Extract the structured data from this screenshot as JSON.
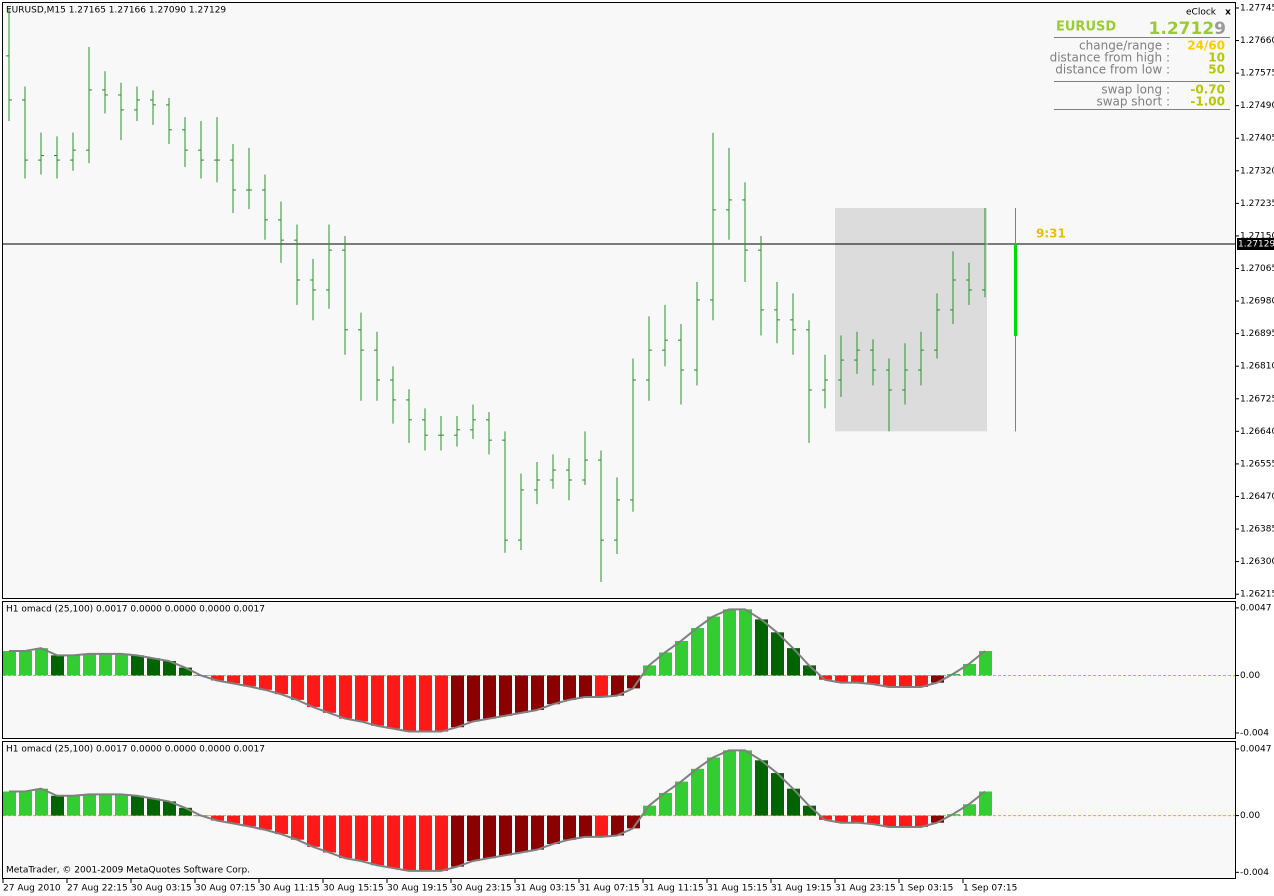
{
  "header": "EURUSD,M15  1.27165 1.27166 1.27090 1.27129",
  "copyright": "MetaTrader, © 2001-2009 MetaQuotes Software Corp.",
  "eclock": {
    "title": "eClock",
    "close": "x",
    "symbol": "EURUSD",
    "price": "1.2712",
    "price_last_digit": "9",
    "rows": [
      {
        "label": "change/range :",
        "value": "24/60",
        "color": "#ffcc00"
      },
      {
        "label": "distance from high :",
        "value": "10",
        "color": "#b5c800"
      },
      {
        "label": "distance from low :",
        "value": "50",
        "color": "#b5c800"
      },
      {
        "label": "swap long :",
        "value": "-0.70",
        "color": "#b5c800"
      },
      {
        "label": "swap short :",
        "value": "-1.00",
        "color": "#b5c800"
      }
    ]
  },
  "chart_data": [
    {
      "type": "ohlc",
      "color": "#2e8b2e",
      "open": [
        1.2762,
        1.27505,
        1.27348,
        1.2736,
        1.27348,
        1.27374,
        1.27531,
        1.27518,
        1.27479,
        1.27505,
        1.27492,
        1.27427,
        1.27374,
        1.27348,
        1.27348,
        1.2727,
        1.2727,
        1.27192,
        1.27139,
        1.27035,
        1.27009,
        1.27113,
        1.26905,
        1.26852,
        1.26774,
        1.26722,
        1.2667,
        1.2663,
        1.2663,
        1.26644,
        1.2667,
        1.26617,
        1.26356,
        1.26487,
        1.26513,
        1.26539,
        1.26513,
        1.26565,
        1.26356,
        1.26461,
        1.26774,
        1.26852,
        1.26878,
        1.268,
        1.26983,
        1.27218,
        1.27244,
        1.27113,
        1.26957,
        1.26931,
        1.26905,
        1.26748,
        1.26774,
        1.26826,
        1.26852,
        1.268,
        1.26748,
        1.268,
        1.26852,
        1.26957,
        1.27035,
        1.27009
      ],
      "high": [
        1.27745,
        1.2754,
        1.2742,
        1.2741,
        1.2742,
        1.27643,
        1.2758,
        1.2755,
        1.2754,
        1.2753,
        1.2751,
        1.2746,
        1.2745,
        1.2746,
        1.2739,
        1.2738,
        1.2731,
        1.2724,
        1.2718,
        1.2709,
        1.2718,
        1.2715,
        1.2695,
        1.269,
        1.2681,
        1.2675,
        1.267,
        1.2668,
        1.2668,
        1.2671,
        1.2669,
        1.2664,
        1.2653,
        1.2656,
        1.2658,
        1.2657,
        1.2664,
        1.2659,
        1.2652,
        1.2683,
        1.2694,
        1.2697,
        1.2692,
        1.2703,
        1.27419,
        1.2738,
        1.2729,
        1.2715,
        1.2703,
        1.27,
        1.2693,
        1.2684,
        1.2689,
        1.269,
        1.2688,
        1.2683,
        1.2687,
        1.269,
        1.27,
        1.2711,
        1.2708,
        1.27223
      ],
      "low": [
        1.2745,
        1.273,
        1.2731,
        1.273,
        1.2732,
        1.2734,
        1.2747,
        1.274,
        1.2745,
        1.2744,
        1.2739,
        1.2733,
        1.273,
        1.2729,
        1.2721,
        1.2722,
        1.2714,
        1.2708,
        1.2697,
        1.2693,
        1.2696,
        1.2684,
        1.2672,
        1.2672,
        1.2666,
        1.2661,
        1.2659,
        1.2659,
        1.266,
        1.2662,
        1.2658,
        1.26323,
        1.2633,
        1.2645,
        1.2649,
        1.2646,
        1.265,
        1.26247,
        1.2632,
        1.2643,
        1.2672,
        1.2681,
        1.2671,
        1.2676,
        1.2693,
        1.2714,
        1.2703,
        1.2689,
        1.2687,
        1.2684,
        1.2661,
        1.267,
        1.2673,
        1.2679,
        1.2676,
        1.2664,
        1.2671,
        1.2676,
        1.2683,
        1.2692,
        1.2697,
        1.2699
      ],
      "close": [
        1.27505,
        1.27348,
        1.2736,
        1.27348,
        1.27374,
        1.27531,
        1.27518,
        1.27479,
        1.27505,
        1.27492,
        1.27427,
        1.27374,
        1.27348,
        1.27348,
        1.2727,
        1.2727,
        1.27192,
        1.27139,
        1.27035,
        1.27009,
        1.27113,
        1.26905,
        1.26852,
        1.26774,
        1.26722,
        1.2667,
        1.2663,
        1.2663,
        1.26644,
        1.2667,
        1.26617,
        1.26356,
        1.26487,
        1.26513,
        1.26539,
        1.26513,
        1.26565,
        1.26356,
        1.26461,
        1.26774,
        1.26852,
        1.26878,
        1.268,
        1.26983,
        1.27218,
        1.27244,
        1.27113,
        1.26957,
        1.26931,
        1.26905,
        1.26748,
        1.26774,
        1.26826,
        1.26852,
        1.268,
        1.26748,
        1.268,
        1.26852,
        1.26957,
        1.27035,
        1.27009,
        1.27129
      ],
      "ylim": [
        1.26205,
        1.27758
      ],
      "yticks": [
        1.27745,
        {
          "value": 1.2766,
          "label": "1.27660"
        },
        1.27575,
        {
          "value": 1.2749,
          "label": "1.27490"
        },
        1.27405,
        {
          "value": 1.2732,
          "label": "1.27320"
        },
        1.27235,
        {
          "value": 1.2715,
          "label": "1.27150"
        },
        1.27065,
        {
          "value": 1.2698,
          "label": "1.26980"
        },
        1.26895,
        {
          "value": 1.2681,
          "label": "1.26810"
        },
        1.26725,
        {
          "value": 1.2664,
          "label": "1.26640"
        },
        1.26555,
        {
          "value": 1.2647,
          "label": "1.26470"
        },
        1.26385,
        {
          "value": 1.263,
          "label": "1.26300"
        },
        1.26215
      ],
      "xticks": [
        {
          "value": 0,
          "label": "27 Aug 2010"
        },
        {
          "value": 4,
          "label": "27 Aug 22:15"
        },
        {
          "value": 8,
          "label": "30 Aug 03:15"
        },
        {
          "value": 12,
          "label": "30 Aug 07:15"
        },
        {
          "value": 16,
          "label": "30 Aug 11:15"
        },
        {
          "value": 20,
          "label": "30 Aug 15:15"
        },
        {
          "value": 24,
          "label": "30 Aug 19:15"
        },
        {
          "value": 28,
          "label": "30 Aug 23:15"
        },
        {
          "value": 32,
          "label": "31 Aug 03:15"
        },
        {
          "value": 36,
          "label": "31 Aug 07:15"
        },
        {
          "value": 40,
          "label": "31 Aug 11:15"
        },
        {
          "value": 44,
          "label": "31 Aug 15:15"
        },
        {
          "value": 48,
          "label": "31 Aug 19:15"
        },
        {
          "value": 52,
          "label": "31 Aug 23:15"
        },
        {
          "value": 56,
          "label": "1 Sep 03:15"
        },
        {
          "value": 60,
          "label": "1 Sep 07:15"
        }
      ],
      "current_price": {
        "value": 1.27129,
        "label": "1.27129"
      },
      "session": {
        "start": 52,
        "end": 61,
        "high": 1.27223,
        "low": 1.2664,
        "open": 1.26889,
        "color": "#dcdcdc",
        "candle_color": "#00dd00"
      },
      "annotation": "9:31",
      "annotation_color": "#e8c000"
    },
    {
      "type": "macd",
      "title": "H1 omacd (25,100) 0.0017 0.0000 0.0000 0.0000 0.0017",
      "values": [
        0.0017,
        0.0017,
        0.0019,
        0.0014,
        0.0014,
        0.0015,
        0.0015,
        0.0015,
        0.0014,
        0.0012,
        0.001,
        0.00055,
        0,
        -0.00035,
        -0.00055,
        -0.00076,
        -0.001,
        -0.0013,
        -0.0017,
        -0.0022,
        -0.0026,
        -0.003,
        -0.0032,
        -0.0035,
        -0.0037,
        -0.0039,
        -0.0039,
        -0.0039,
        -0.0036,
        -0.0032,
        -0.003,
        -0.0028,
        -0.0026,
        -0.0024,
        -0.002,
        -0.0017,
        -0.0015,
        -0.0015,
        -0.0014,
        -0.0009,
        0.0007,
        0.0016,
        0.0024,
        0.0033,
        0.0041,
        0.0046,
        0.0046,
        0.0039,
        0.003,
        0.0019,
        0.0007,
        -0.0003,
        -0.0005,
        -0.0005,
        -0.0006,
        -0.0008,
        -0.0008,
        -0.0008,
        -0.0005,
        0.0001,
        0.0008,
        0.0017
      ],
      "colors": {
        "pos_up": "#33cc33",
        "pos_down": "#006400",
        "neg_down": "#ff1a1a",
        "neg_up": "#8b0000"
      },
      "line_color": "#808080",
      "zero_color": "#ffa500",
      "ylim": [
        -0.00435,
        0.00511
      ],
      "yticks": [
        0.0047,
        {
          "value": 0,
          "label": "0.00"
        },
        -0.004
      ]
    },
    {
      "type": "macd",
      "title": "H1 omacd (25,100) 0.0017 0.0000 0.0000 0.0000 0.0017",
      "values": [
        0.0017,
        0.0017,
        0.0019,
        0.0014,
        0.0014,
        0.0015,
        0.0015,
        0.0015,
        0.0014,
        0.0012,
        0.001,
        0.00055,
        0,
        -0.00035,
        -0.00055,
        -0.00076,
        -0.001,
        -0.0013,
        -0.0017,
        -0.0022,
        -0.0026,
        -0.003,
        -0.0032,
        -0.0035,
        -0.0037,
        -0.0039,
        -0.0039,
        -0.0039,
        -0.0036,
        -0.0032,
        -0.003,
        -0.0028,
        -0.0026,
        -0.0024,
        -0.002,
        -0.0017,
        -0.0015,
        -0.0015,
        -0.0014,
        -0.0009,
        0.0007,
        0.0016,
        0.0024,
        0.0033,
        0.0041,
        0.0046,
        0.0046,
        0.0039,
        0.003,
        0.0019,
        0.0007,
        -0.0003,
        -0.0005,
        -0.0005,
        -0.0006,
        -0.0008,
        -0.0008,
        -0.0008,
        -0.0005,
        0.0001,
        0.0008,
        0.0017
      ],
      "colors": {
        "pos_up": "#33cc33",
        "pos_down": "#006400",
        "neg_down": "#ff1a1a",
        "neg_up": "#8b0000"
      },
      "line_color": "#808080",
      "zero_color": "#ffa500",
      "ylim": [
        -0.0044,
        0.00519
      ],
      "yticks": [
        0.0047,
        {
          "value": 0,
          "label": "0.00"
        },
        -0.004
      ]
    }
  ]
}
